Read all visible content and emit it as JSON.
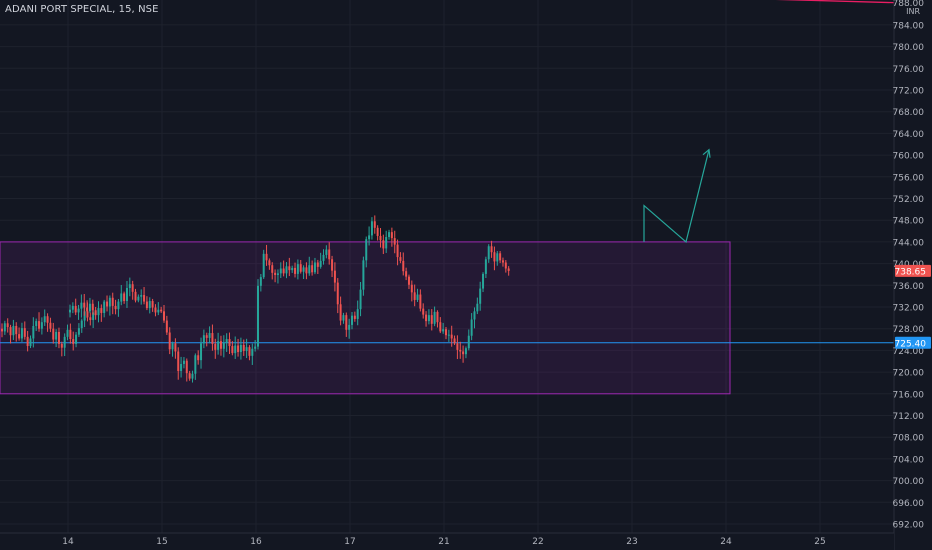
{
  "header": {
    "symbol_title": "ADANI PORT SPECIAL, 15, NSE"
  },
  "price_scale": {
    "currency": "INR",
    "partial_top_label": "788.00",
    "ticks": [
      "784.00",
      "780.00",
      "776.00",
      "772.00",
      "768.00",
      "764.00",
      "760.00",
      "756.00",
      "752.00",
      "748.00",
      "744.00",
      "740.00",
      "736.00",
      "732.00",
      "728.00",
      "724.00",
      "720.00",
      "716.00",
      "712.00",
      "708.00",
      "704.00",
      "700.00",
      "696.00",
      "692.00"
    ]
  },
  "time_scale": {
    "labels": [
      "14",
      "15",
      "16",
      "17",
      "21",
      "22",
      "23",
      "24",
      "25"
    ]
  },
  "markers": {
    "last_price": "738.65",
    "horizontal_line_price": "725.40"
  },
  "colors": {
    "background": "#131722",
    "grid": "#1e222d",
    "up": "#26a69a",
    "down": "#ef5350",
    "zone_border": "#9c27b0",
    "zone_fill": "rgba(156,39,176,0.13)",
    "hline": "#2196f3",
    "projection": "#26a69a",
    "trendline": "#e91e63"
  },
  "chart_data": {
    "type": "candlestick",
    "title": "ADANI PORT SPECIAL, 15, NSE",
    "unit": "INR",
    "interval": "15",
    "ylim": [
      690.5,
      789.2
    ],
    "y_ticks": [
      692,
      696,
      700,
      704,
      708,
      712,
      716,
      720,
      724,
      728,
      732,
      736,
      740,
      744,
      748,
      752,
      756,
      760,
      764,
      768,
      772,
      776,
      780,
      784
    ],
    "x_labels": [
      "14",
      "15",
      "16",
      "17",
      "21",
      "22",
      "23",
      "24",
      "25"
    ],
    "sessions": [
      {
        "label": "14",
        "closes": [
          727.5,
          729,
          728.3,
          726.8,
          728.5,
          727,
          726.2,
          728.1,
          726.5,
          724.8,
          726.2,
          728.5,
          729.4,
          728,
          729.2,
          730.3,
          729.1,
          728,
          726,
          727.4,
          725.2,
          724.5,
          726.5,
          727.8,
          726.1,
          725.2,
          726.9,
          728.1,
          729.5,
          731.2,
          730.1,
          729.6,
          731
        ]
      },
      {
        "label": "15",
        "closes": [
          731.5,
          732.2,
          731,
          731.7,
          732.8,
          731.9,
          731.2,
          732.6,
          731.4,
          730.5,
          731.8,
          730.9,
          733,
          732.1,
          733.7,
          732.2,
          731.6,
          733,
          734.5,
          733.1,
          735.5,
          736.2,
          734.8,
          733.2,
          733.9,
          734.2,
          733,
          731.8,
          733.1,
          731.9,
          731,
          731.5,
          731.2
        ]
      },
      {
        "label": "16",
        "closes": [
          729.5,
          727.3,
          724.2,
          725.3,
          723.8,
          720.2,
          721.5,
          722.1,
          719.8,
          718.8,
          719.7,
          723.1,
          722.2,
          725.3,
          726.8,
          726.3,
          727.2,
          725.2,
          724.1,
          725.7,
          724.3,
          725.4,
          726.1,
          724.8,
          723.5,
          724.9,
          723.7,
          725,
          723.9,
          724.6,
          723,
          724.3,
          724.7
        ]
      },
      {
        "label": "17",
        "closes": [
          735.9,
          737.5,
          741.8,
          740.6,
          739.7,
          738.3,
          737.9,
          738.2,
          739.1,
          738.2,
          739.5,
          738.8,
          739.2,
          738.1,
          739.9,
          738.5,
          739.3,
          738.2,
          739.7,
          738.4,
          740.2,
          739.4,
          740.5,
          741.6,
          742.6,
          740.8,
          738.7,
          736.5,
          732.5,
          729.5,
          730.5,
          727.8,
          728.7
        ]
      },
      {
        "label": "21",
        "closes": [
          730.4,
          729.8,
          731.6,
          735.2,
          740.6,
          744.5,
          745.2,
          747.8,
          746.6,
          745.1,
          744.3,
          742.8,
          744.9,
          745.8,
          744.7,
          743.5,
          741.2,
          740.5,
          738.6,
          737.6,
          736.1,
          734.7,
          733.3,
          734.3,
          731.7,
          730.6,
          729.4,
          730.5,
          728.9,
          731.1,
          729.2,
          727.5,
          727.9
        ]
      },
      {
        "label": "22",
        "closes": [
          726.8,
          726.9,
          726.2,
          725.3,
          724.1,
          723.8,
          723.3,
          724.4,
          726.7,
          729.7,
          731.2,
          732.6,
          735.4,
          738.1,
          740.8,
          743.2,
          742.1,
          740.4,
          741.9,
          740.6,
          740.2,
          739.1,
          738.65
        ]
      }
    ],
    "zone": {
      "top": 744,
      "bottom": 716,
      "color": "purple"
    },
    "horizontal_line": 725.4,
    "last_price": 738.65,
    "projection_path_prices": [
      744,
      750.7,
      744,
      761
    ],
    "trend_line_prices": [
      789.5,
      788.1
    ]
  }
}
